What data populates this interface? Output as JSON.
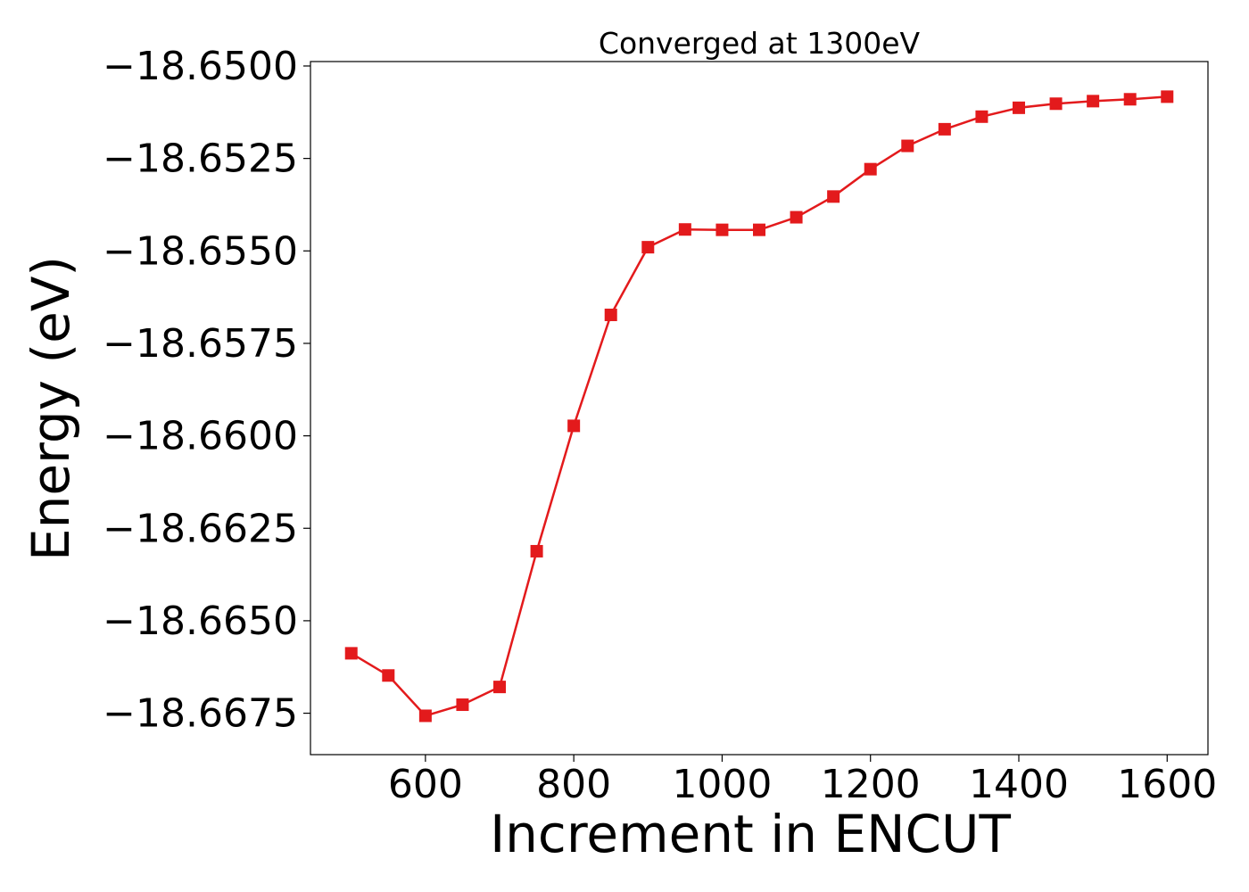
{
  "chart_data": {
    "type": "line",
    "title": "Converged at 1300eV",
    "xlabel": "Increment in ENCUT",
    "ylabel": "Energy (eV)",
    "xlim": [
      445,
      1655
    ],
    "ylim": [
      -18.66862,
      -18.64988
    ],
    "x_ticks": [
      600,
      800,
      1000,
      1200,
      1400,
      1600
    ],
    "x_tick_labels": [
      "600",
      "800",
      "1000",
      "1200",
      "1400",
      "1600"
    ],
    "y_ticks": [
      -18.65,
      -18.6525,
      -18.655,
      -18.6575,
      -18.66,
      -18.6625,
      -18.665,
      -18.6675
    ],
    "y_tick_labels": [
      "−18.6500",
      "−18.6525",
      "−18.6550",
      "−18.6575",
      "−18.6600",
      "−18.6625",
      "−18.6650",
      "−18.6675"
    ],
    "grid": false,
    "series": [
      {
        "color": "#e31a1c",
        "marker": "square",
        "x": [
          500,
          550,
          600,
          650,
          700,
          750,
          800,
          850,
          900,
          950,
          1000,
          1050,
          1100,
          1150,
          1200,
          1250,
          1300,
          1350,
          1400,
          1450,
          1500,
          1550,
          1600
        ],
        "y": [
          -18.66588,
          -18.66648,
          -18.66757,
          -18.66727,
          -18.66679,
          -18.66312,
          -18.65973,
          -18.65673,
          -18.6549,
          -18.65442,
          -18.65443,
          -18.65443,
          -18.65409,
          -18.65353,
          -18.65279,
          -18.65216,
          -18.65171,
          -18.65137,
          -18.65113,
          -18.65102,
          -18.65095,
          -18.6509,
          -18.65083
        ]
      }
    ]
  }
}
